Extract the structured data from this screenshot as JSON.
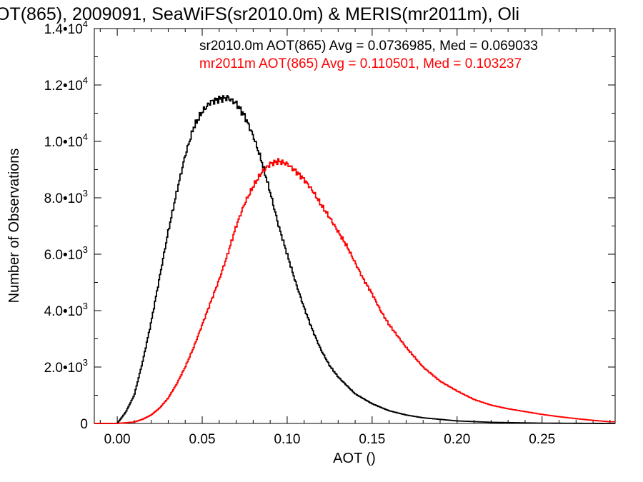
{
  "chart_data": {
    "type": "line",
    "title": "OT(865), 2009091, SeaWiFS(sr2010.0m) & MERIS(mr2011m), Oli",
    "xlabel": "AOT ()",
    "ylabel": "Number of Observations",
    "xlim": [
      -0.0135,
      0.293
    ],
    "ylim": [
      0,
      14000
    ],
    "x_ticks": [
      {
        "value": 0.0,
        "label": "0.00"
      },
      {
        "value": 0.05,
        "label": "0.05"
      },
      {
        "value": 0.1,
        "label": "0.10"
      },
      {
        "value": 0.15,
        "label": "0.15"
      },
      {
        "value": 0.2,
        "label": "0.20"
      },
      {
        "value": 0.25,
        "label": "0.25"
      }
    ],
    "y_ticks": [
      {
        "value": 0,
        "mant": "0",
        "exp": ""
      },
      {
        "value": 2000,
        "mant": "2.0•10",
        "exp": "3"
      },
      {
        "value": 4000,
        "mant": "4.0•10",
        "exp": "3"
      },
      {
        "value": 6000,
        "mant": "6.0•10",
        "exp": "3"
      },
      {
        "value": 8000,
        "mant": "8.0•10",
        "exp": "3"
      },
      {
        "value": 10000,
        "mant": "1.0•10",
        "exp": "4"
      },
      {
        "value": 12000,
        "mant": "1.2•10",
        "exp": "4"
      },
      {
        "value": 14000,
        "mant": "1.4•10",
        "exp": "4"
      }
    ],
    "legend_placement": "top-right",
    "series": [
      {
        "legend": "sr2010.0m AOT(865) Avg = 0.0736985, Med = 0.069033",
        "color": "#000000",
        "x": [
          -0.013,
          0.0,
          0.005,
          0.01,
          0.015,
          0.02,
          0.025,
          0.03,
          0.035,
          0.04,
          0.045,
          0.05,
          0.055,
          0.06,
          0.065,
          0.07,
          0.075,
          0.08,
          0.085,
          0.09,
          0.095,
          0.1,
          0.105,
          0.11,
          0.115,
          0.12,
          0.125,
          0.13,
          0.14,
          0.15,
          0.16,
          0.17,
          0.18,
          0.2,
          0.22,
          0.25,
          0.29
        ],
        "y": [
          0,
          0,
          400,
          1000,
          2200,
          3600,
          5200,
          6800,
          8200,
          9500,
          10500,
          11050,
          11400,
          11500,
          11550,
          11350,
          10900,
          10200,
          9300,
          8200,
          7000,
          6000,
          5000,
          4100,
          3300,
          2600,
          2050,
          1650,
          1050,
          700,
          450,
          300,
          200,
          90,
          40,
          10,
          0
        ]
      },
      {
        "legend": "mr2011m AOT(865) Avg = 0.110501, Med = 0.103237",
        "color": "#ff0000",
        "x": [
          -0.013,
          0.0,
          0.01,
          0.015,
          0.02,
          0.025,
          0.03,
          0.035,
          0.04,
          0.045,
          0.05,
          0.055,
          0.06,
          0.065,
          0.07,
          0.075,
          0.08,
          0.085,
          0.09,
          0.095,
          0.1,
          0.105,
          0.11,
          0.115,
          0.12,
          0.125,
          0.13,
          0.135,
          0.14,
          0.145,
          0.15,
          0.155,
          0.16,
          0.165,
          0.17,
          0.18,
          0.19,
          0.2,
          0.21,
          0.22,
          0.23,
          0.24,
          0.25,
          0.26,
          0.27,
          0.28,
          0.29
        ],
        "y": [
          0,
          0,
          50,
          150,
          300,
          550,
          900,
          1400,
          2000,
          2700,
          3500,
          4300,
          5100,
          6000,
          7000,
          7800,
          8400,
          8900,
          9200,
          9300,
          9200,
          8950,
          8650,
          8250,
          7750,
          7300,
          6800,
          6300,
          5700,
          5100,
          4600,
          4000,
          3500,
          3100,
          2700,
          2000,
          1500,
          1150,
          850,
          650,
          520,
          420,
          320,
          240,
          170,
          110,
          60
        ]
      }
    ]
  }
}
